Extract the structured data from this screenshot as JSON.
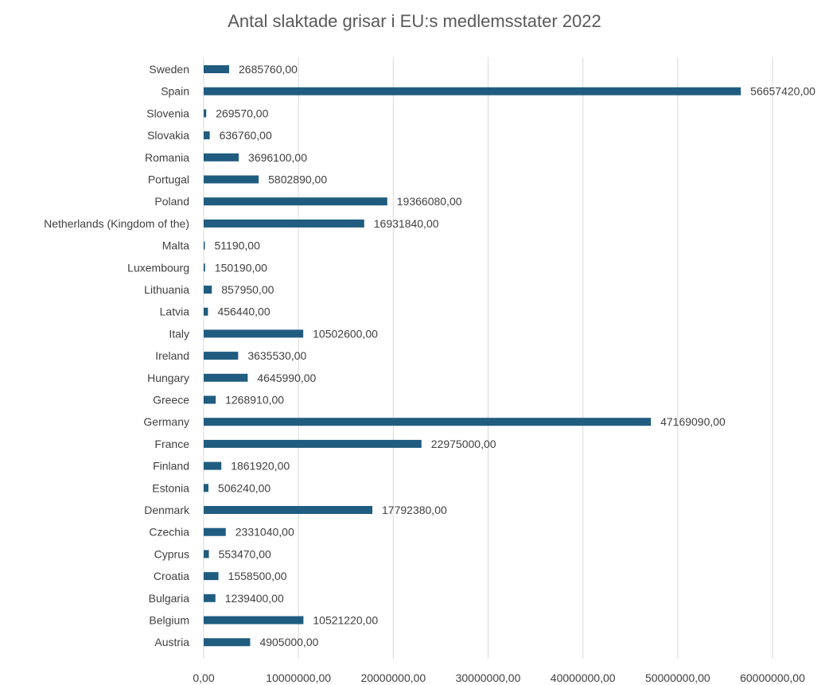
{
  "chart_data": {
    "type": "bar",
    "orientation": "horizontal",
    "title": "Antal slaktade grisar i EU:s medlemsstater 2022",
    "xlabel": "",
    "ylabel": "",
    "xlim": [
      0,
      60000000
    ],
    "x_ticks": [
      0,
      10000000,
      20000000,
      30000000,
      40000000,
      50000000,
      60000000
    ],
    "x_tick_labels": [
      "0,00",
      "10000000,00",
      "20000000,00",
      "30000000,00",
      "40000000,00",
      "50000000,00",
      "60000000,00"
    ],
    "grid": true,
    "legend": "none",
    "bar_color": "#1f5c80",
    "categories": [
      "Sweden",
      "Spain",
      "Slovenia",
      "Slovakia",
      "Romania",
      "Portugal",
      "Poland",
      "Netherlands (Kingdom of the)",
      "Malta",
      "Luxembourg",
      "Lithuania",
      "Latvia",
      "Italy",
      "Ireland",
      "Hungary",
      "Greece",
      "Germany",
      "France",
      "Finland",
      "Estonia",
      "Denmark",
      "Czechia",
      "Cyprus",
      "Croatia",
      "Bulgaria",
      "Belgium",
      "Austria"
    ],
    "values": [
      2685760,
      56657420,
      269570,
      636760,
      3696100,
      5802890,
      19366080,
      16931840,
      51190,
      150190,
      857950,
      456440,
      10502600,
      3635530,
      4645990,
      1268910,
      47169090,
      22975000,
      1861920,
      506240,
      17792380,
      2331040,
      553470,
      1558500,
      1239400,
      10521220,
      4905000
    ],
    "data_labels": [
      "2685760,00",
      "56657420,00",
      "269570,00",
      "636760,00",
      "3696100,00",
      "5802890,00",
      "19366080,00",
      "16931840,00",
      "51190,00",
      "150190,00",
      "857950,00",
      "456440,00",
      "10502600,00",
      "3635530,00",
      "4645990,00",
      "1268910,00",
      "47169090,00",
      "22975000,00",
      "1861920,00",
      "506240,00",
      "17792380,00",
      "2331040,00",
      "553470,00",
      "1558500,00",
      "1239400,00",
      "10521220,00",
      "4905000,00"
    ]
  }
}
